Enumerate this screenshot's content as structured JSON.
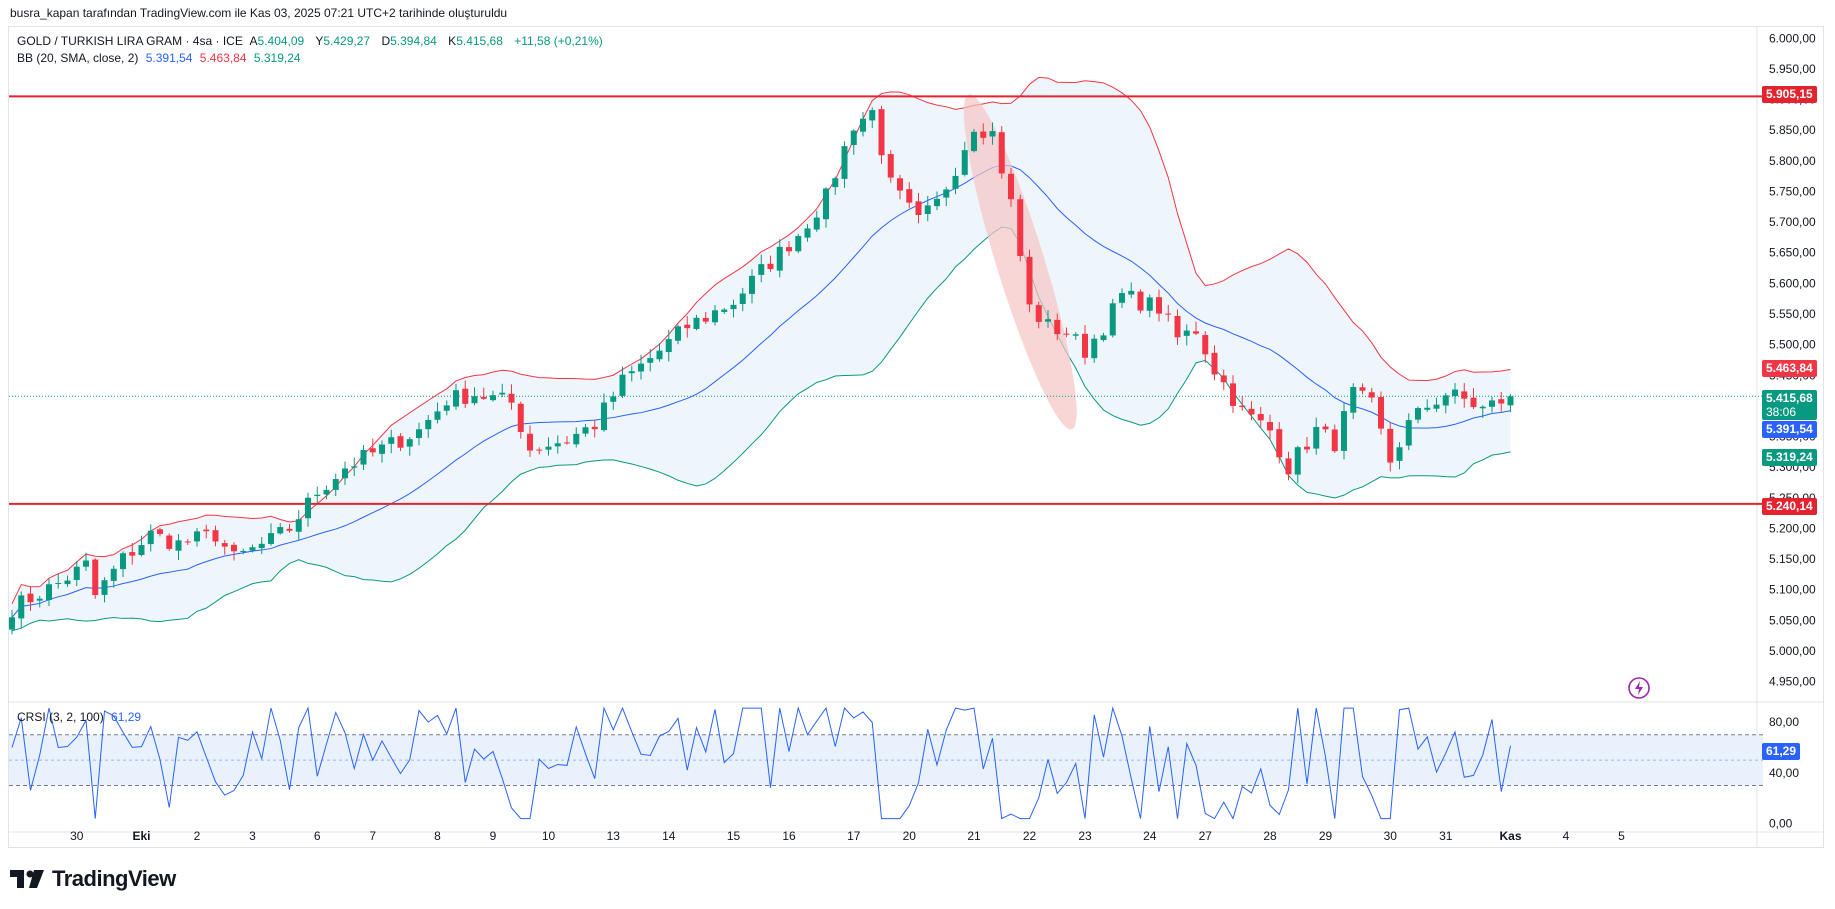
{
  "caption": "busra_kapan tarafından TradingView.com ile Kas 03, 2025 07:21 UTC+2 tarihinde oluşturuldu",
  "legend": {
    "symbol": "GOLD / TURKISH LIRA GRAM · 4sa · ICE",
    "open_label": "A",
    "open": "5.404,09",
    "high_label": "Y",
    "high": "5.429,27",
    "low_label": "D",
    "low": "5.394,84",
    "close_label": "K",
    "close": "5.415,68",
    "change": "+11,58 (+0,21%)",
    "bb_label": "BB (20, SMA, close, 2)",
    "bb_basis": "5.391,54",
    "bb_upper": "5.463,84",
    "bb_lower": "5.319,24",
    "crsi_label": "CRSI (3, 2, 100)",
    "crsi_value": "61,29"
  },
  "price_tags": {
    "resistance": "5.905,15",
    "support": "5.240,14",
    "bb_upper": "5.463,84",
    "last_price": "5.415,68",
    "countdown": "38:06",
    "bb_basis": "5.391,54",
    "bb_lower": "5.319,24",
    "crsi": "61,29"
  },
  "colors": {
    "up": "#089981",
    "down": "#f23645",
    "basis": "#2962ff",
    "upper_band": "#f23645",
    "lower_band": "#089981",
    "band_fill": "#eef5fb",
    "hline": "#e5232f",
    "ellipse": "#f7c5c5",
    "crsi": "#2962ff"
  },
  "logo": "TradingView",
  "chart_data": [
    {
      "type": "candlestick",
      "title": "GOLD / TURKISH LIRA GRAM · 4sa · ICE",
      "ylim": [
        4920,
        6020
      ],
      "y_ticks": [
        {
          "value": 6000,
          "label": "6.000,00"
        },
        {
          "value": 5950,
          "label": "5.950,00"
        },
        {
          "value": 5900,
          "label": "5.900,00"
        },
        {
          "value": 5850,
          "label": "5.850,00"
        },
        {
          "value": 5800,
          "label": "5.800,00"
        },
        {
          "value": 5750,
          "label": "5.750,00"
        },
        {
          "value": 5700,
          "label": "5.700,00"
        },
        {
          "value": 5650,
          "label": "5.650,00"
        },
        {
          "value": 5600,
          "label": "5.600,00"
        },
        {
          "value": 5550,
          "label": "5.550,00"
        },
        {
          "value": 5500,
          "label": "5.500,00"
        },
        {
          "value": 5450,
          "label": "5.450,00"
        },
        {
          "value": 5400,
          "label": "5.400,00"
        },
        {
          "value": 5350,
          "label": "5.350,00"
        },
        {
          "value": 5300,
          "label": "5.300,00"
        },
        {
          "value": 5250,
          "label": "5.250,00"
        },
        {
          "value": 5200,
          "label": "5.200,00"
        },
        {
          "value": 5150,
          "label": "5.150,00"
        },
        {
          "value": 5100,
          "label": "5.100,00"
        },
        {
          "value": 5050,
          "label": "5.050,00"
        },
        {
          "value": 5000,
          "label": "5.000,00"
        },
        {
          "value": 4950,
          "label": "4.950,00"
        }
      ],
      "x_ticks": [
        {
          "bar": 7,
          "label": "30"
        },
        {
          "bar": 14,
          "label": "Eki",
          "bold": true
        },
        {
          "bar": 20,
          "label": "2"
        },
        {
          "bar": 26,
          "label": "3"
        },
        {
          "bar": 33,
          "label": "6"
        },
        {
          "bar": 39,
          "label": "7"
        },
        {
          "bar": 46,
          "label": "8"
        },
        {
          "bar": 52,
          "label": "9"
        },
        {
          "bar": 58,
          "label": "10"
        },
        {
          "bar": 65,
          "label": "13"
        },
        {
          "bar": 71,
          "label": "14"
        },
        {
          "bar": 78,
          "label": "15"
        },
        {
          "bar": 84,
          "label": "16"
        },
        {
          "bar": 91,
          "label": "17"
        },
        {
          "bar": 97,
          "label": "20"
        },
        {
          "bar": 104,
          "label": "21"
        },
        {
          "bar": 110,
          "label": "22"
        },
        {
          "bar": 116,
          "label": "23"
        },
        {
          "bar": 123,
          "label": "24"
        },
        {
          "bar": 129,
          "label": "27"
        },
        {
          "bar": 136,
          "label": "28"
        },
        {
          "bar": 142,
          "label": "29"
        },
        {
          "bar": 149,
          "label": "30"
        },
        {
          "bar": 155,
          "label": "31"
        },
        {
          "bar": 162,
          "label": "Kas",
          "bold": true
        },
        {
          "bar": 168,
          "label": "4"
        },
        {
          "bar": 174,
          "label": "5"
        }
      ],
      "horizontal_lines": [
        5905.15,
        5240.14
      ],
      "last_close": 5415.68,
      "anchor_points": [
        [
          0,
          5070
        ],
        [
          5,
          5110
        ],
        [
          8,
          5140
        ],
        [
          9,
          5090
        ],
        [
          12,
          5150
        ],
        [
          15,
          5190
        ],
        [
          18,
          5175
        ],
        [
          22,
          5190
        ],
        [
          24,
          5150
        ],
        [
          28,
          5180
        ],
        [
          30,
          5200
        ],
        [
          33,
          5260
        ],
        [
          36,
          5300
        ],
        [
          40,
          5330
        ],
        [
          44,
          5360
        ],
        [
          47,
          5410
        ],
        [
          50,
          5420
        ],
        [
          54,
          5405
        ],
        [
          56,
          5330
        ],
        [
          60,
          5345
        ],
        [
          63,
          5370
        ],
        [
          66,
          5440
        ],
        [
          70,
          5490
        ],
        [
          73,
          5530
        ],
        [
          75,
          5545
        ],
        [
          78,
          5570
        ],
        [
          81,
          5620
        ],
        [
          85,
          5680
        ],
        [
          88,
          5740
        ],
        [
          91,
          5860
        ],
        [
          93,
          5880
        ],
        [
          95,
          5760
        ],
        [
          98,
          5700
        ],
        [
          100,
          5730
        ],
        [
          102,
          5790
        ],
        [
          104,
          5860
        ],
        [
          106,
          5845
        ],
        [
          108,
          5730
        ],
        [
          110,
          5560
        ],
        [
          112,
          5530
        ],
        [
          114,
          5520
        ],
        [
          116,
          5490
        ],
        [
          118,
          5530
        ],
        [
          120,
          5580
        ],
        [
          122,
          5570
        ],
        [
          124,
          5560
        ],
        [
          126,
          5510
        ],
        [
          128,
          5525
        ],
        [
          130,
          5460
        ],
        [
          133,
          5390
        ],
        [
          136,
          5360
        ],
        [
          138,
          5300
        ],
        [
          141,
          5360
        ],
        [
          143,
          5340
        ],
        [
          145,
          5420
        ],
        [
          147,
          5400
        ],
        [
          149,
          5310
        ],
        [
          151,
          5370
        ],
        [
          153,
          5400
        ],
        [
          155,
          5420
        ],
        [
          157,
          5410
        ],
        [
          159,
          5395
        ],
        [
          162,
          5415.68
        ]
      ],
      "bollinger_bands": {
        "period": 20,
        "stddev": 2,
        "basis": 5391.54,
        "upper": 5463.84,
        "lower": 5319.24
      },
      "highlight": {
        "shape": "ellipse",
        "from_bar": 104,
        "to_bar": 114,
        "from_price": 5880,
        "to_price": 5390
      }
    },
    {
      "type": "line",
      "title": "CRSI (3, 2, 100)",
      "ylim": [
        -5,
        95
      ],
      "y_ticks": [
        {
          "value": 80,
          "label": "80,00"
        },
        {
          "value": 40,
          "label": "40,00"
        },
        {
          "value": 0,
          "label": "0,00"
        }
      ],
      "bands": [
        70,
        30
      ],
      "series": [
        {
          "name": "CRSI",
          "last": 61.29
        }
      ]
    }
  ]
}
